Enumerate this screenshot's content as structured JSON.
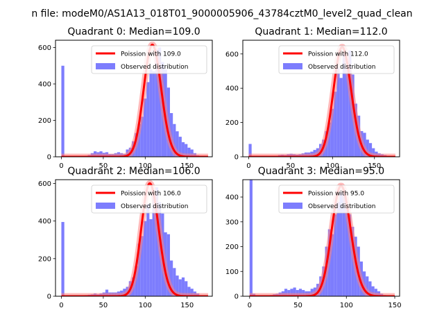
{
  "figure": {
    "suptitle": "n file: modeM0/AS1A13_018T01_9000005906_43784cztM0_level2_quad_clean"
  },
  "colors": {
    "hist": "#7d7dfd",
    "fit_line": "#ff0000",
    "fit_glow": "#ff8080",
    "axis": "#000000",
    "legend_border": "#cccccc"
  },
  "chart_data": [
    {
      "type": "bar",
      "title": "Quadrant 0: Median=109.0",
      "xlim": [
        -7,
        180
      ],
      "ylim": [
        0,
        640
      ],
      "xticks": [
        0,
        50,
        100,
        150
      ],
      "xtick_labels": [
        "0",
        "50",
        "100",
        "150"
      ],
      "yticks": [
        0,
        200,
        400,
        600
      ],
      "ytick_labels": [
        "0",
        "200",
        "400",
        "600"
      ],
      "legend": {
        "position": "top-right",
        "entries": [
          "Poission with 109.0",
          "Observed distribution"
        ]
      },
      "poisson_mean": 109.0,
      "poisson_peak": 615,
      "bin_width": 3.5,
      "histogram": [
        {
          "x": 0,
          "y": 500
        },
        {
          "x": 3.5,
          "y": 5
        },
        {
          "x": 7,
          "y": 3
        },
        {
          "x": 10.5,
          "y": 3
        },
        {
          "x": 14,
          "y": 4
        },
        {
          "x": 17.5,
          "y": 4
        },
        {
          "x": 21,
          "y": 5
        },
        {
          "x": 24.5,
          "y": 5
        },
        {
          "x": 28,
          "y": 6
        },
        {
          "x": 31.5,
          "y": 10
        },
        {
          "x": 35,
          "y": 20
        },
        {
          "x": 38.5,
          "y": 30
        },
        {
          "x": 42,
          "y": 25
        },
        {
          "x": 45.5,
          "y": 30
        },
        {
          "x": 49,
          "y": 22
        },
        {
          "x": 52.5,
          "y": 25
        },
        {
          "x": 56,
          "y": 15
        },
        {
          "x": 59.5,
          "y": 15
        },
        {
          "x": 63,
          "y": 20
        },
        {
          "x": 66.5,
          "y": 25
        },
        {
          "x": 70,
          "y": 20
        },
        {
          "x": 73.5,
          "y": 15
        },
        {
          "x": 77,
          "y": 40
        },
        {
          "x": 80.5,
          "y": 50
        },
        {
          "x": 84,
          "y": 85
        },
        {
          "x": 87.5,
          "y": 130
        },
        {
          "x": 91,
          "y": 180
        },
        {
          "x": 94.5,
          "y": 220
        },
        {
          "x": 98,
          "y": 320
        },
        {
          "x": 101.5,
          "y": 410
        },
        {
          "x": 105,
          "y": 480
        },
        {
          "x": 108.5,
          "y": 470
        },
        {
          "x": 112,
          "y": 590
        },
        {
          "x": 115.5,
          "y": 600
        },
        {
          "x": 119,
          "y": 520
        },
        {
          "x": 122.5,
          "y": 480
        },
        {
          "x": 126,
          "y": 380
        },
        {
          "x": 129.5,
          "y": 240
        },
        {
          "x": 133,
          "y": 180
        },
        {
          "x": 136.5,
          "y": 140
        },
        {
          "x": 140,
          "y": 110
        },
        {
          "x": 143.5,
          "y": 80
        },
        {
          "x": 147,
          "y": 70
        },
        {
          "x": 150.5,
          "y": 50
        },
        {
          "x": 154,
          "y": 40
        },
        {
          "x": 157.5,
          "y": 20
        },
        {
          "x": 161,
          "y": 8
        },
        {
          "x": 164.5,
          "y": 4
        }
      ]
    },
    {
      "type": "bar",
      "title": "Quadrant 1: Median=112.0",
      "xlim": [
        -7,
        180
      ],
      "ylim": [
        0,
        680
      ],
      "xticks": [
        0,
        50,
        100,
        150
      ],
      "xtick_labels": [
        "0",
        "50",
        "100",
        "150"
      ],
      "yticks": [
        0,
        200,
        400,
        600
      ],
      "ytick_labels": [
        "0",
        "200",
        "400",
        "600"
      ],
      "legend": {
        "position": "top-right",
        "entries": [
          "Poission with 112.0",
          "Observed distribution"
        ]
      },
      "poisson_mean": 112.0,
      "poisson_peak": 640,
      "bin_width": 3.5,
      "histogram": [
        {
          "x": 0,
          "y": 75
        },
        {
          "x": 3.5,
          "y": 3
        },
        {
          "x": 7,
          "y": 2
        },
        {
          "x": 10.5,
          "y": 2
        },
        {
          "x": 14,
          "y": 3
        },
        {
          "x": 17.5,
          "y": 3
        },
        {
          "x": 21,
          "y": 4
        },
        {
          "x": 24.5,
          "y": 4
        },
        {
          "x": 28,
          "y": 5
        },
        {
          "x": 31.5,
          "y": 6
        },
        {
          "x": 35,
          "y": 10
        },
        {
          "x": 38.5,
          "y": 12
        },
        {
          "x": 42,
          "y": 10
        },
        {
          "x": 45.5,
          "y": 15
        },
        {
          "x": 49,
          "y": 18
        },
        {
          "x": 52.5,
          "y": 15
        },
        {
          "x": 56,
          "y": 12
        },
        {
          "x": 59.5,
          "y": 15
        },
        {
          "x": 63,
          "y": 20
        },
        {
          "x": 66.5,
          "y": 25
        },
        {
          "x": 70,
          "y": 25
        },
        {
          "x": 73.5,
          "y": 30
        },
        {
          "x": 77,
          "y": 40
        },
        {
          "x": 80.5,
          "y": 50
        },
        {
          "x": 84,
          "y": 75
        },
        {
          "x": 87.5,
          "y": 100
        },
        {
          "x": 91,
          "y": 150
        },
        {
          "x": 94.5,
          "y": 200
        },
        {
          "x": 98,
          "y": 280
        },
        {
          "x": 101.5,
          "y": 380
        },
        {
          "x": 105,
          "y": 520
        },
        {
          "x": 108.5,
          "y": 460
        },
        {
          "x": 112,
          "y": 600
        },
        {
          "x": 115.5,
          "y": 520
        },
        {
          "x": 119,
          "y": 620
        },
        {
          "x": 122.5,
          "y": 480
        },
        {
          "x": 126,
          "y": 310
        },
        {
          "x": 129.5,
          "y": 240
        },
        {
          "x": 133,
          "y": 150
        },
        {
          "x": 136.5,
          "y": 140
        },
        {
          "x": 140,
          "y": 100
        },
        {
          "x": 143.5,
          "y": 80
        },
        {
          "x": 147,
          "y": 50
        },
        {
          "x": 150.5,
          "y": 30
        },
        {
          "x": 154,
          "y": 20
        },
        {
          "x": 157.5,
          "y": 15
        },
        {
          "x": 161,
          "y": 10
        },
        {
          "x": 164.5,
          "y": 5
        }
      ]
    },
    {
      "type": "bar",
      "title": "Quadrant 2: Median=106.0",
      "xlim": [
        -7,
        180
      ],
      "ylim": [
        0,
        620
      ],
      "xticks": [
        0,
        50,
        100,
        150
      ],
      "xtick_labels": [
        "0",
        "50",
        "100",
        "150"
      ],
      "yticks": [
        0,
        200,
        400,
        600
      ],
      "ytick_labels": [
        "0",
        "200",
        "400",
        "600"
      ],
      "legend": {
        "position": "top-right",
        "entries": [
          "Poission with 106.0",
          "Observed distribution"
        ]
      },
      "poisson_mean": 106.0,
      "poisson_peak": 600,
      "bin_width": 3.5,
      "histogram": [
        {
          "x": 0,
          "y": 395
        },
        {
          "x": 3.5,
          "y": 5
        },
        {
          "x": 7,
          "y": 3
        },
        {
          "x": 10.5,
          "y": 3
        },
        {
          "x": 14,
          "y": 3
        },
        {
          "x": 17.5,
          "y": 4
        },
        {
          "x": 21,
          "y": 5
        },
        {
          "x": 24.5,
          "y": 5
        },
        {
          "x": 28,
          "y": 6
        },
        {
          "x": 31.5,
          "y": 8
        },
        {
          "x": 35,
          "y": 10
        },
        {
          "x": 38.5,
          "y": 15
        },
        {
          "x": 42,
          "y": 10
        },
        {
          "x": 45.5,
          "y": 15
        },
        {
          "x": 49,
          "y": 20
        },
        {
          "x": 52.5,
          "y": 35
        },
        {
          "x": 56,
          "y": 20
        },
        {
          "x": 59.5,
          "y": 20
        },
        {
          "x": 63,
          "y": 20
        },
        {
          "x": 66.5,
          "y": 25
        },
        {
          "x": 70,
          "y": 30
        },
        {
          "x": 73.5,
          "y": 40
        },
        {
          "x": 77,
          "y": 50
        },
        {
          "x": 80.5,
          "y": 80
        },
        {
          "x": 84,
          "y": 100
        },
        {
          "x": 87.5,
          "y": 160
        },
        {
          "x": 91,
          "y": 280
        },
        {
          "x": 94.5,
          "y": 320
        },
        {
          "x": 98,
          "y": 400
        },
        {
          "x": 101.5,
          "y": 490
        },
        {
          "x": 105,
          "y": 410
        },
        {
          "x": 108.5,
          "y": 540
        },
        {
          "x": 112,
          "y": 580
        },
        {
          "x": 115.5,
          "y": 500
        },
        {
          "x": 119,
          "y": 440
        },
        {
          "x": 122.5,
          "y": 340
        },
        {
          "x": 126,
          "y": 330
        },
        {
          "x": 129.5,
          "y": 190
        },
        {
          "x": 133,
          "y": 150
        },
        {
          "x": 136.5,
          "y": 110
        },
        {
          "x": 140,
          "y": 90
        },
        {
          "x": 143.5,
          "y": 100
        },
        {
          "x": 147,
          "y": 80
        },
        {
          "x": 150.5,
          "y": 50
        },
        {
          "x": 154,
          "y": 40
        },
        {
          "x": 157.5,
          "y": 25
        },
        {
          "x": 161,
          "y": 15
        },
        {
          "x": 164.5,
          "y": 5
        }
      ]
    },
    {
      "type": "bar",
      "title": "Quadrant 3: Median=95.0",
      "xlim": [
        -7,
        155
      ],
      "ylim": [
        0,
        470
      ],
      "xticks": [
        0,
        50,
        100,
        150
      ],
      "xtick_labels": [
        "0",
        "50",
        "100",
        "150"
      ],
      "yticks": [
        0,
        100,
        200,
        300,
        400
      ],
      "ytick_labels": [
        "0",
        "100",
        "200",
        "300",
        "400"
      ],
      "legend": {
        "position": "top-right",
        "entries": [
          "Poission with 95.0",
          "Observed distribution"
        ]
      },
      "poisson_mean": 95.0,
      "poisson_peak": 445,
      "bin_width": 3,
      "histogram": [
        {
          "x": 0,
          "y": 470
        },
        {
          "x": 3,
          "y": 10
        },
        {
          "x": 6,
          "y": 3
        },
        {
          "x": 9,
          "y": 3
        },
        {
          "x": 12,
          "y": 3
        },
        {
          "x": 15,
          "y": 3
        },
        {
          "x": 18,
          "y": 4
        },
        {
          "x": 21,
          "y": 5
        },
        {
          "x": 24,
          "y": 8
        },
        {
          "x": 27,
          "y": 10
        },
        {
          "x": 30,
          "y": 15
        },
        {
          "x": 33,
          "y": 20
        },
        {
          "x": 36,
          "y": 30
        },
        {
          "x": 39,
          "y": 25
        },
        {
          "x": 42,
          "y": 30
        },
        {
          "x": 45,
          "y": 35
        },
        {
          "x": 48,
          "y": 25
        },
        {
          "x": 51,
          "y": 30
        },
        {
          "x": 54,
          "y": 25
        },
        {
          "x": 57,
          "y": 20
        },
        {
          "x": 60,
          "y": 20
        },
        {
          "x": 63,
          "y": 30
        },
        {
          "x": 66,
          "y": 35
        },
        {
          "x": 69,
          "y": 50
        },
        {
          "x": 72,
          "y": 80
        },
        {
          "x": 75,
          "y": 120
        },
        {
          "x": 78,
          "y": 200
        },
        {
          "x": 81,
          "y": 270
        },
        {
          "x": 84,
          "y": 250
        },
        {
          "x": 87,
          "y": 330
        },
        {
          "x": 90,
          "y": 380
        },
        {
          "x": 93,
          "y": 420
        },
        {
          "x": 96,
          "y": 420
        },
        {
          "x": 99,
          "y": 360
        },
        {
          "x": 102,
          "y": 330
        },
        {
          "x": 105,
          "y": 280
        },
        {
          "x": 108,
          "y": 240
        },
        {
          "x": 111,
          "y": 200
        },
        {
          "x": 114,
          "y": 140
        },
        {
          "x": 117,
          "y": 100
        },
        {
          "x": 120,
          "y": 80
        },
        {
          "x": 123,
          "y": 60
        },
        {
          "x": 126,
          "y": 40
        },
        {
          "x": 129,
          "y": 30
        },
        {
          "x": 132,
          "y": 20
        },
        {
          "x": 135,
          "y": 10
        },
        {
          "x": 138,
          "y": 5
        }
      ]
    }
  ]
}
